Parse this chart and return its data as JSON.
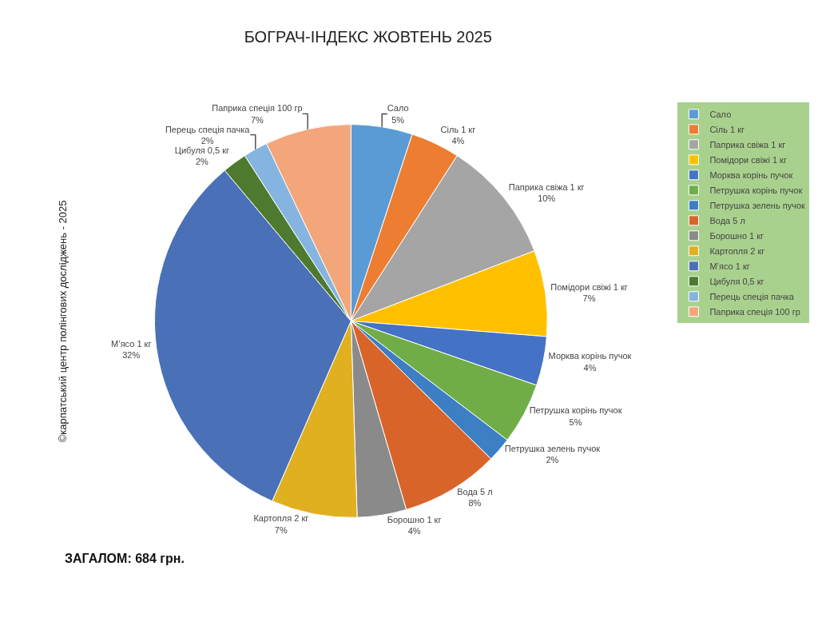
{
  "chart_data": {
    "type": "pie",
    "title": "БОГРАЧ-ІНДЕКС ЖОВТЕНЬ 2025",
    "categories": [
      "Сало",
      "Сіль 1 кг",
      "Паприка свіжа 1 кг",
      "Помідори свіжі 1 кг",
      "Морква корінь пучок",
      "Петрушка корінь пучок",
      "Петрушка зелень пучок",
      "Вода 5 л",
      "Борошно 1 кг",
      "Картопля 2 кг",
      "М’ясо 1 кг",
      "Цибуля 0,5 кг",
      "Перець спеція пачка",
      "Паприка спеція 100 гр"
    ],
    "values": [
      5,
      4,
      10,
      7,
      4,
      5,
      2,
      8,
      4,
      7,
      32,
      2,
      2,
      7
    ],
    "value_labels": [
      "5%",
      "4%",
      "10%",
      "7%",
      "4%",
      "5%",
      "2%",
      "8%",
      "4%",
      "7%",
      "32%",
      "2%",
      "2%",
      "7%"
    ],
    "colors": [
      "#5b9bd5",
      "#ed7d31",
      "#a5a5a5",
      "#ffc000",
      "#4472c4",
      "#70ad47",
      "#3c7fc4",
      "#d8642a",
      "#8a8a8a",
      "#e0b020",
      "#4a70b8",
      "#4e7a30",
      "#86b4e0",
      "#f2a67a"
    ],
    "legend": "right",
    "annotations": [
      "©карпатський центр полінгових досліджень - 2025",
      "ЗАГАЛОМ: 684 грн."
    ]
  }
}
